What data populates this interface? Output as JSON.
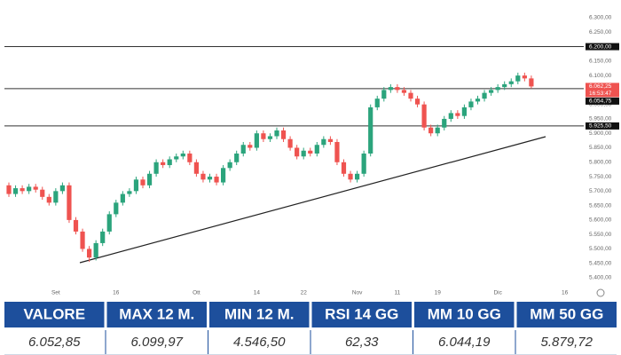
{
  "chart_data": {
    "type": "candlestick",
    "categories": [
      null,
      null,
      null,
      null,
      null,
      null,
      null,
      "Set",
      null,
      null,
      null,
      null,
      null,
      null,
      null,
      null,
      "16",
      null,
      null,
      null,
      null,
      null,
      null,
      null,
      null,
      null,
      null,
      null,
      "Ott",
      null,
      null,
      null,
      null,
      null,
      null,
      null,
      null,
      "14",
      null,
      null,
      null,
      null,
      null,
      null,
      "22",
      null,
      null,
      null,
      null,
      null,
      null,
      null,
      "Nov",
      null,
      null,
      null,
      null,
      null,
      "11",
      null,
      null,
      null,
      null,
      null,
      "19",
      null,
      null,
      null,
      null,
      null,
      null,
      null,
      null,
      "Dic",
      null,
      null,
      null,
      null,
      null,
      null,
      null,
      null,
      null,
      "16",
      null,
      null
    ],
    "open": [
      5720,
      5690,
      5710,
      5700,
      5715,
      5705,
      5680,
      5660,
      5700,
      5720,
      5600,
      5560,
      5500,
      5470,
      5520,
      5560,
      5620,
      5660,
      5690,
      5700,
      5740,
      5720,
      5760,
      5800,
      5790,
      5810,
      5820,
      5830,
      5800,
      5760,
      5740,
      5750,
      5730,
      5780,
      5800,
      5830,
      5860,
      5850,
      5900,
      5880,
      5890,
      5910,
      5880,
      5850,
      5820,
      5840,
      5830,
      5860,
      5880,
      5870,
      5800,
      5760,
      5740,
      5760,
      5830,
      5990,
      6020,
      6050,
      6060,
      6050,
      6040,
      6020,
      6000,
      5920,
      5900,
      5920,
      5950,
      5970,
      5960,
      5990,
      6010,
      6020,
      6040,
      6050,
      6060,
      6070,
      6080,
      6100,
      6090,
      null,
      null,
      null,
      null,
      null,
      null,
      null
    ],
    "high": [
      5730,
      5720,
      5720,
      5725,
      5725,
      5715,
      5690,
      5710,
      5730,
      5730,
      5610,
      5570,
      5510,
      5530,
      5570,
      5630,
      5670,
      5700,
      5710,
      5750,
      5750,
      5770,
      5810,
      5810,
      5820,
      5830,
      5840,
      5840,
      5810,
      5770,
      5760,
      5760,
      5790,
      5810,
      5840,
      5870,
      5870,
      5910,
      5910,
      5900,
      5920,
      5920,
      5890,
      5860,
      5850,
      5850,
      5870,
      5890,
      5890,
      5880,
      5810,
      5770,
      5770,
      5840,
      6000,
      6030,
      6060,
      6070,
      6070,
      6060,
      6050,
      6030,
      6010,
      5930,
      5930,
      5960,
      5980,
      5980,
      6000,
      6020,
      6030,
      6050,
      6060,
      6070,
      6080,
      6090,
      6110,
      6110,
      6100,
      null,
      null,
      null,
      null,
      null,
      null,
      null
    ],
    "low": [
      5680,
      5680,
      5690,
      5690,
      5695,
      5670,
      5650,
      5650,
      5690,
      5590,
      5550,
      5490,
      5455,
      5460,
      5510,
      5550,
      5610,
      5650,
      5680,
      5690,
      5710,
      5710,
      5750,
      5780,
      5780,
      5800,
      5810,
      5790,
      5750,
      5730,
      5730,
      5720,
      5720,
      5770,
      5790,
      5820,
      5840,
      5840,
      5870,
      5870,
      5880,
      5870,
      5840,
      5810,
      5810,
      5820,
      5820,
      5850,
      5860,
      5790,
      5750,
      5730,
      5730,
      5750,
      5820,
      5980,
      6010,
      6040,
      6040,
      6030,
      6010,
      5990,
      5910,
      5890,
      5890,
      5910,
      5940,
      5950,
      5950,
      5980,
      6000,
      6010,
      6030,
      6040,
      6050,
      6060,
      6070,
      6080,
      6055,
      null,
      null,
      null,
      null,
      null,
      null,
      null
    ],
    "close": [
      5690,
      5710,
      5700,
      5715,
      5705,
      5680,
      5660,
      5700,
      5720,
      5600,
      5560,
      5500,
      5470,
      5520,
      5560,
      5620,
      5660,
      5690,
      5700,
      5740,
      5720,
      5760,
      5800,
      5790,
      5810,
      5820,
      5830,
      5800,
      5760,
      5740,
      5750,
      5730,
      5780,
      5800,
      5830,
      5860,
      5850,
      5900,
      5880,
      5890,
      5910,
      5880,
      5850,
      5820,
      5840,
      5830,
      5860,
      5880,
      5870,
      5800,
      5760,
      5740,
      5760,
      5830,
      5990,
      6020,
      6050,
      6060,
      6050,
      6040,
      6020,
      6000,
      5920,
      5900,
      5920,
      5950,
      5970,
      5960,
      5990,
      6010,
      6020,
      6040,
      6050,
      6060,
      6070,
      6080,
      6100,
      6090,
      6062.25,
      null,
      null,
      null,
      null,
      null,
      null,
      null
    ],
    "up_color": "#2ba47c",
    "down_color": "#ef5350",
    "ylim": [
      5400,
      6300
    ],
    "yticks": [
      {
        "value": 5400,
        "label": "5.400,00"
      },
      {
        "value": 5450,
        "label": "5.450,00"
      },
      {
        "value": 5500,
        "label": "5.500,00"
      },
      {
        "value": 5550,
        "label": "5.550,00"
      },
      {
        "value": 5600,
        "label": "5.600,00"
      },
      {
        "value": 5650,
        "label": "5.650,00"
      },
      {
        "value": 5700,
        "label": "5.700,00"
      },
      {
        "value": 5750,
        "label": "5.750,00"
      },
      {
        "value": 5800,
        "label": "5.800,00"
      },
      {
        "value": 5850,
        "label": "5.850,00"
      },
      {
        "value": 5900,
        "label": "5.900,00"
      },
      {
        "value": 5950,
        "label": "5.950,00"
      },
      {
        "value": 6000,
        "label": "6.000,00"
      },
      {
        "value": 6050,
        "label": "6.050,00"
      },
      {
        "value": 6100,
        "label": "6.100,00"
      },
      {
        "value": 6150,
        "label": "6.150,00"
      },
      {
        "value": 6200,
        "label": "6.200,00"
      },
      {
        "value": 6250,
        "label": "6.250,00"
      },
      {
        "value": 6300,
        "label": "6.300,00"
      }
    ],
    "grid": false,
    "hlines": [
      {
        "value": 6200,
        "label": "6.200,00"
      },
      {
        "value": 6054.75,
        "label": "6.054,75"
      },
      {
        "value": 5925.5,
        "label": "5.925,50"
      }
    ],
    "last_price": {
      "value": 6062.25,
      "label": "6.062,25"
    },
    "countdown": "16:53:47"
  },
  "table": {
    "headers": [
      "VALORE",
      "MAX 12 M.",
      "MIN 12 M.",
      "RSI 14 GG",
      "MM 10 GG",
      "MM 50 GG"
    ],
    "values": [
      "6.052,85",
      "6.099,97",
      "4.546,50",
      "62,33",
      "6.044,19",
      "5.879,72"
    ]
  }
}
